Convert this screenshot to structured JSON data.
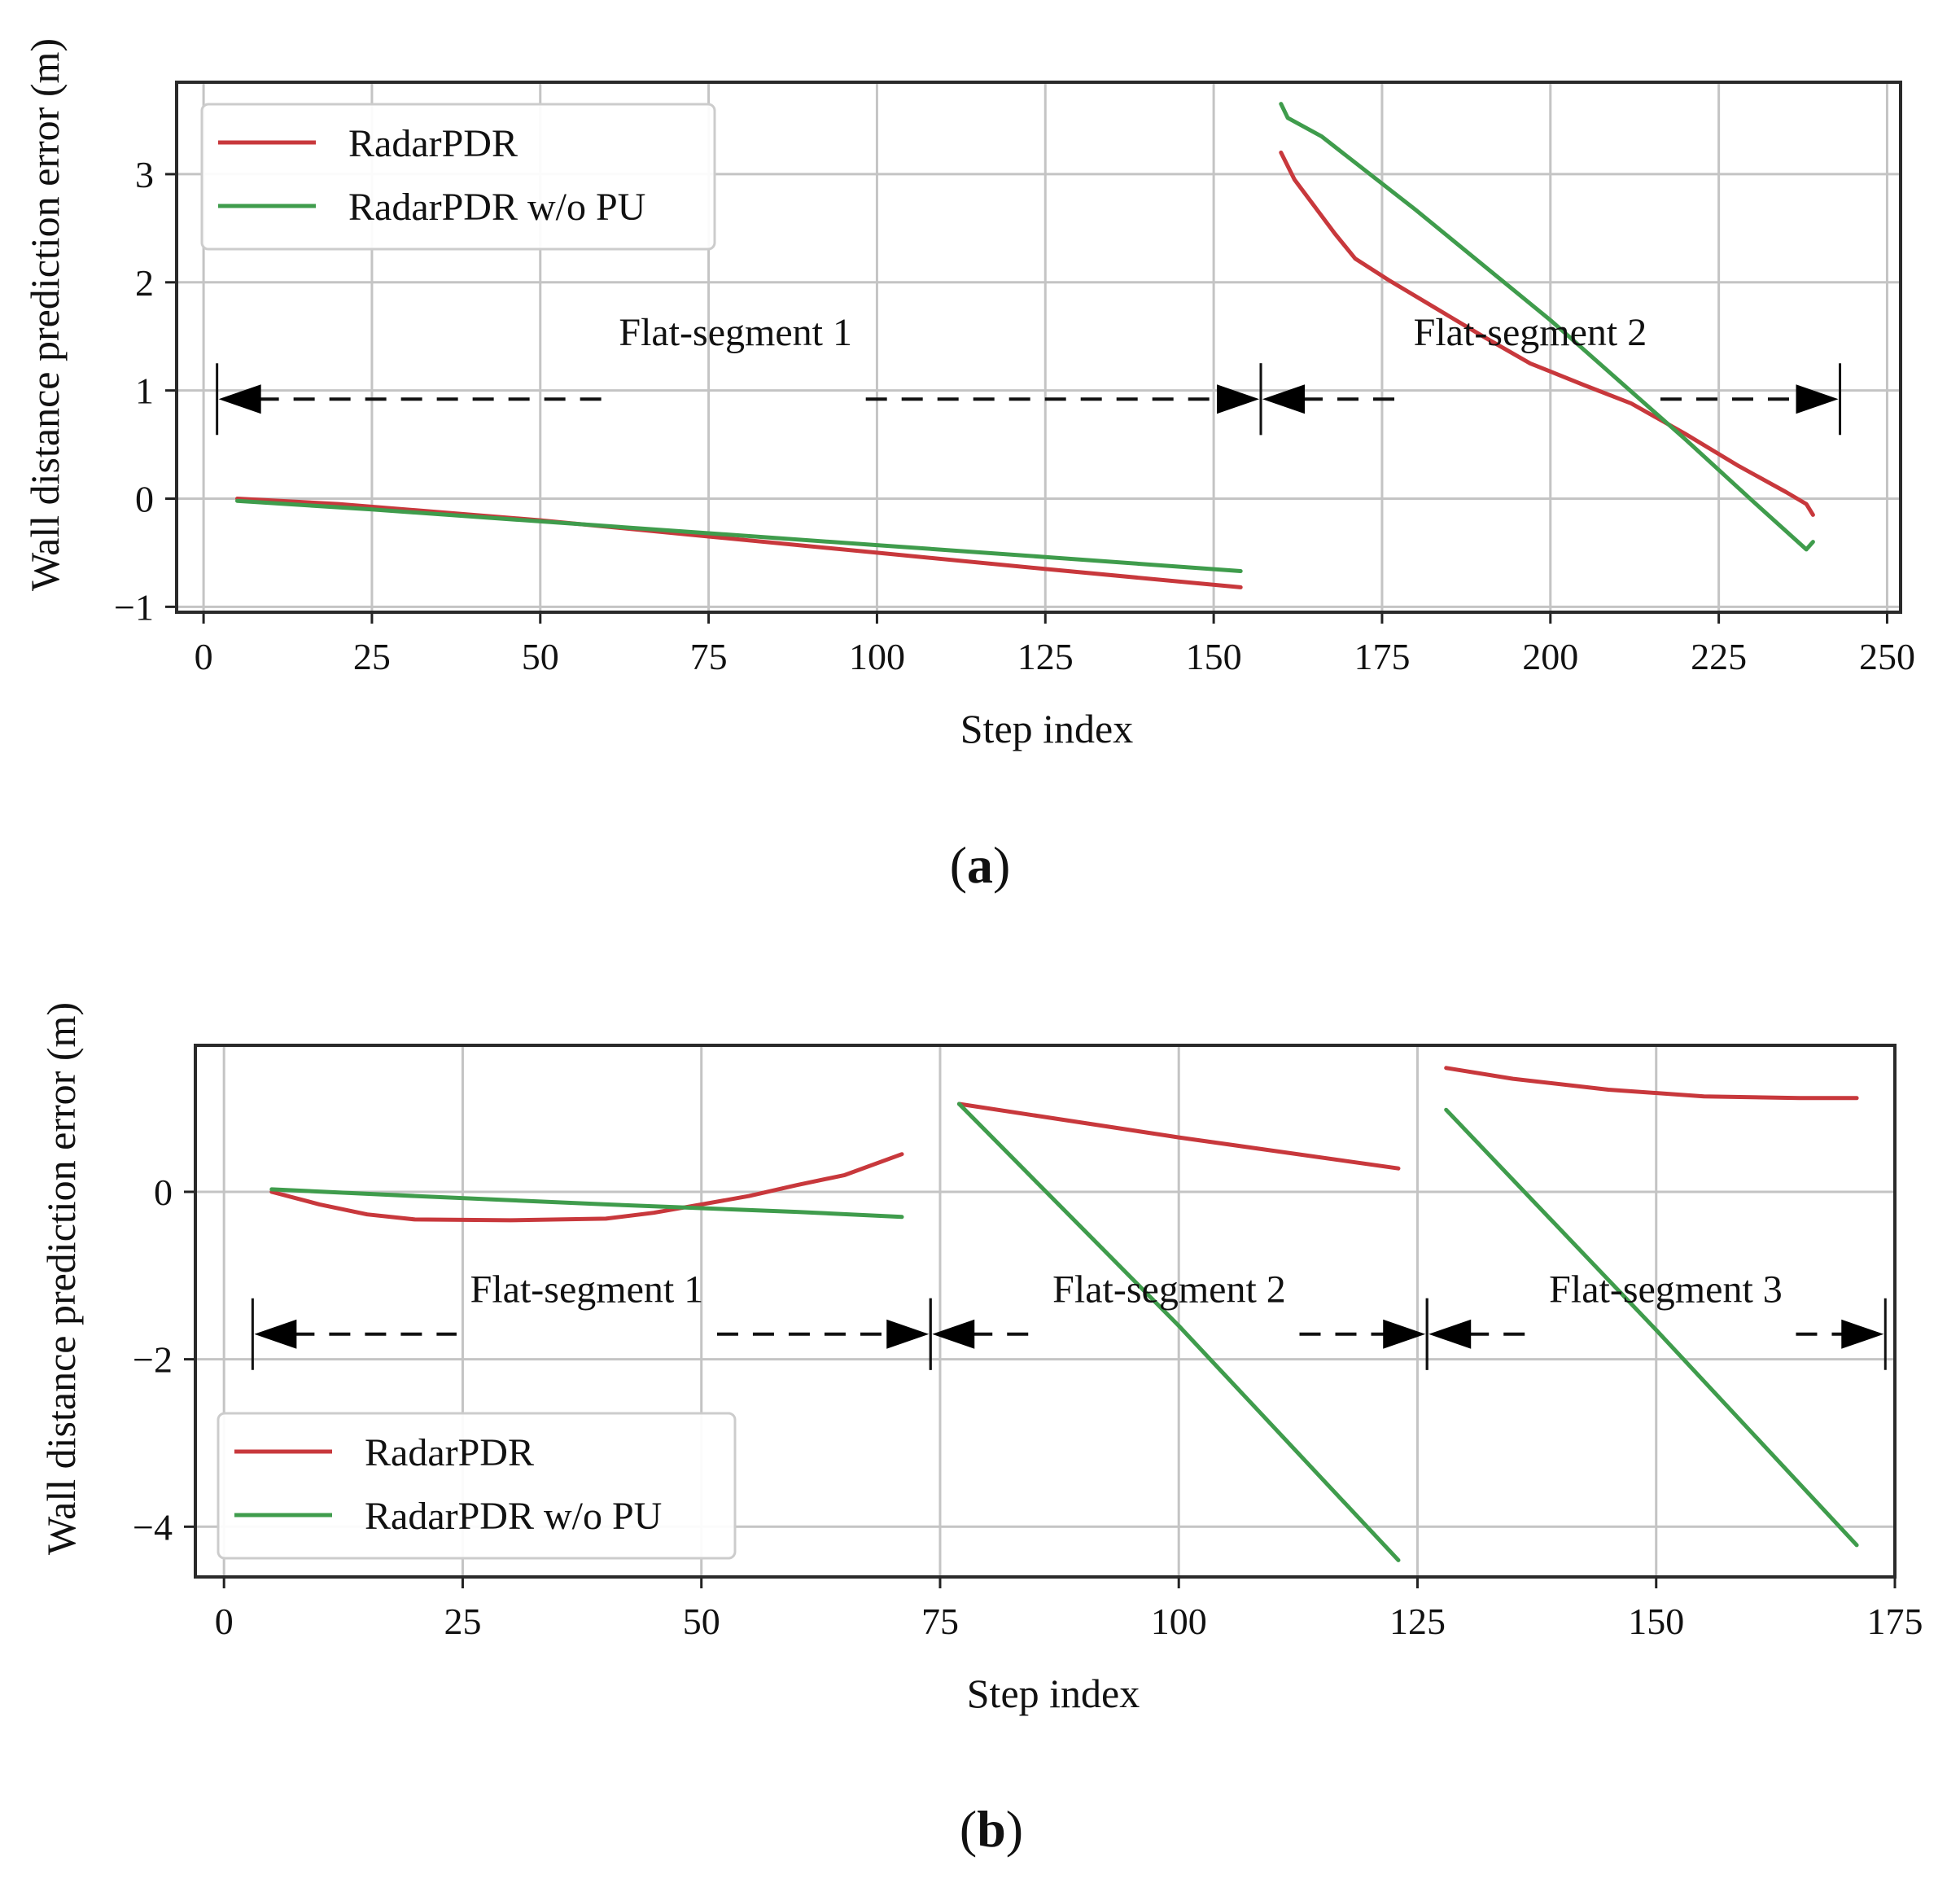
{
  "figure": {
    "caption_a": "a",
    "caption_b": "b"
  },
  "chart_data": [
    {
      "id": "a",
      "type": "line",
      "xlabel": "Step index",
      "ylabel": "Wall distance prediction error (m)",
      "xlim": [
        -4,
        252
      ],
      "ylim": [
        -1.05,
        3.85
      ],
      "xticks": [
        0,
        25,
        50,
        75,
        100,
        125,
        150,
        175,
        200,
        225,
        250
      ],
      "yticks": [
        -1,
        0,
        1,
        2,
        3
      ],
      "ytick_labels": [
        "−1",
        "0",
        "1",
        "2",
        "3"
      ],
      "grid": true,
      "legend_position": "top-left",
      "colors": {
        "RadarPDR": "#c8383c",
        "RadarPDR w/o PU": "#3f9c4c"
      },
      "series": [
        {
          "name": "RadarPDR",
          "segments": [
            [
              [
                5,
                0
              ],
              [
                20,
                -0.05
              ],
              [
                50,
                -0.2
              ],
              [
                75,
                -0.35
              ],
              [
                100,
                -0.5
              ],
              [
                125,
                -0.65
              ],
              [
                154,
                -0.82
              ]
            ],
            [
              [
                160,
                3.2
              ],
              [
                162,
                2.95
              ],
              [
                165,
                2.7
              ],
              [
                168,
                2.45
              ],
              [
                171,
                2.22
              ],
              [
                176,
                2.02
              ],
              [
                183,
                1.76
              ],
              [
                190,
                1.5
              ],
              [
                197,
                1.25
              ],
              [
                205,
                1.05
              ],
              [
                212,
                0.88
              ],
              [
                220,
                0.6
              ],
              [
                228,
                0.3
              ],
              [
                235,
                0.06
              ],
              [
                238,
                -0.05
              ],
              [
                239,
                -0.15
              ]
            ]
          ]
        },
        {
          "name": "RadarPDR w/o PU",
          "segments": [
            [
              [
                5,
                -0.02
              ],
              [
                25,
                -0.1
              ],
              [
                50,
                -0.21
              ],
              [
                75,
                -0.32
              ],
              [
                100,
                -0.43
              ],
              [
                125,
                -0.54
              ],
              [
                154,
                -0.67
              ]
            ],
            [
              [
                160,
                3.65
              ],
              [
                161,
                3.52
              ],
              [
                166,
                3.35
              ],
              [
                180,
                2.67
              ],
              [
                200,
                1.65
              ],
              [
                220,
                0.55
              ],
              [
                230,
                -0.02
              ],
              [
                238,
                -0.47
              ],
              [
                239,
                -0.4
              ]
            ]
          ]
        }
      ],
      "annotations": [
        {
          "label": "Flat-segment 1",
          "x_start": 2,
          "x_end": 157,
          "y": 0.92,
          "label_x": 79,
          "label_y": 1.42
        },
        {
          "label": "Flat-segment 2",
          "x_start": 157,
          "x_end": 243,
          "y": 0.92,
          "label_x": 197,
          "label_y": 1.42
        }
      ]
    },
    {
      "id": "b",
      "type": "line",
      "xlabel": "Step index",
      "ylabel": "Wall distance prediction error (m)",
      "xlim": [
        -3,
        175
      ],
      "ylim": [
        -4.6,
        1.75
      ],
      "xticks": [
        0,
        25,
        50,
        75,
        100,
        125,
        150,
        175
      ],
      "yticks": [
        -4,
        -2,
        0
      ],
      "ytick_labels": [
        "−4",
        "−2",
        "0"
      ],
      "grid": true,
      "legend_position": "bottom-left",
      "colors": {
        "RadarPDR": "#c8383c",
        "RadarPDR w/o PU": "#3f9c4c"
      },
      "series": [
        {
          "name": "RadarPDR",
          "segments": [
            [
              [
                5,
                0
              ],
              [
                10,
                -0.15
              ],
              [
                15,
                -0.27
              ],
              [
                20,
                -0.33
              ],
              [
                30,
                -0.34
              ],
              [
                40,
                -0.32
              ],
              [
                45,
                -0.25
              ],
              [
                50,
                -0.15
              ],
              [
                55,
                -0.05
              ],
              [
                60,
                0.08
              ],
              [
                65,
                0.2
              ],
              [
                71,
                0.45
              ]
            ],
            [
              [
                77,
                1.05
              ],
              [
                100,
                0.65
              ],
              [
                123,
                0.28
              ]
            ],
            [
              [
                128,
                1.48
              ],
              [
                135,
                1.35
              ],
              [
                145,
                1.22
              ],
              [
                155,
                1.14
              ],
              [
                165,
                1.12
              ],
              [
                171,
                1.12
              ]
            ]
          ]
        },
        {
          "name": "RadarPDR w/o PU",
          "segments": [
            [
              [
                5,
                0.03
              ],
              [
                20,
                -0.05
              ],
              [
                40,
                -0.15
              ],
              [
                60,
                -0.24
              ],
              [
                71,
                -0.3
              ]
            ],
            [
              [
                77,
                1.05
              ],
              [
                100,
                -1.6
              ],
              [
                123,
                -4.4
              ]
            ],
            [
              [
                128,
                0.98
              ],
              [
                150,
                -1.65
              ],
              [
                171,
                -4.22
              ]
            ]
          ]
        }
      ],
      "annotations": [
        {
          "label": "Flat-segment 1",
          "x_start": 3,
          "x_end": 74,
          "y": -1.7,
          "label_x": 38,
          "label_y": -1.32
        },
        {
          "label": "Flat-segment 2",
          "x_start": 74,
          "x_end": 126,
          "y": -1.7,
          "label_x": 99,
          "label_y": -1.32
        },
        {
          "label": "Flat-segment 3",
          "x_start": 126,
          "x_end": 174,
          "y": -1.7,
          "label_x": 151,
          "label_y": -1.32
        }
      ]
    }
  ]
}
